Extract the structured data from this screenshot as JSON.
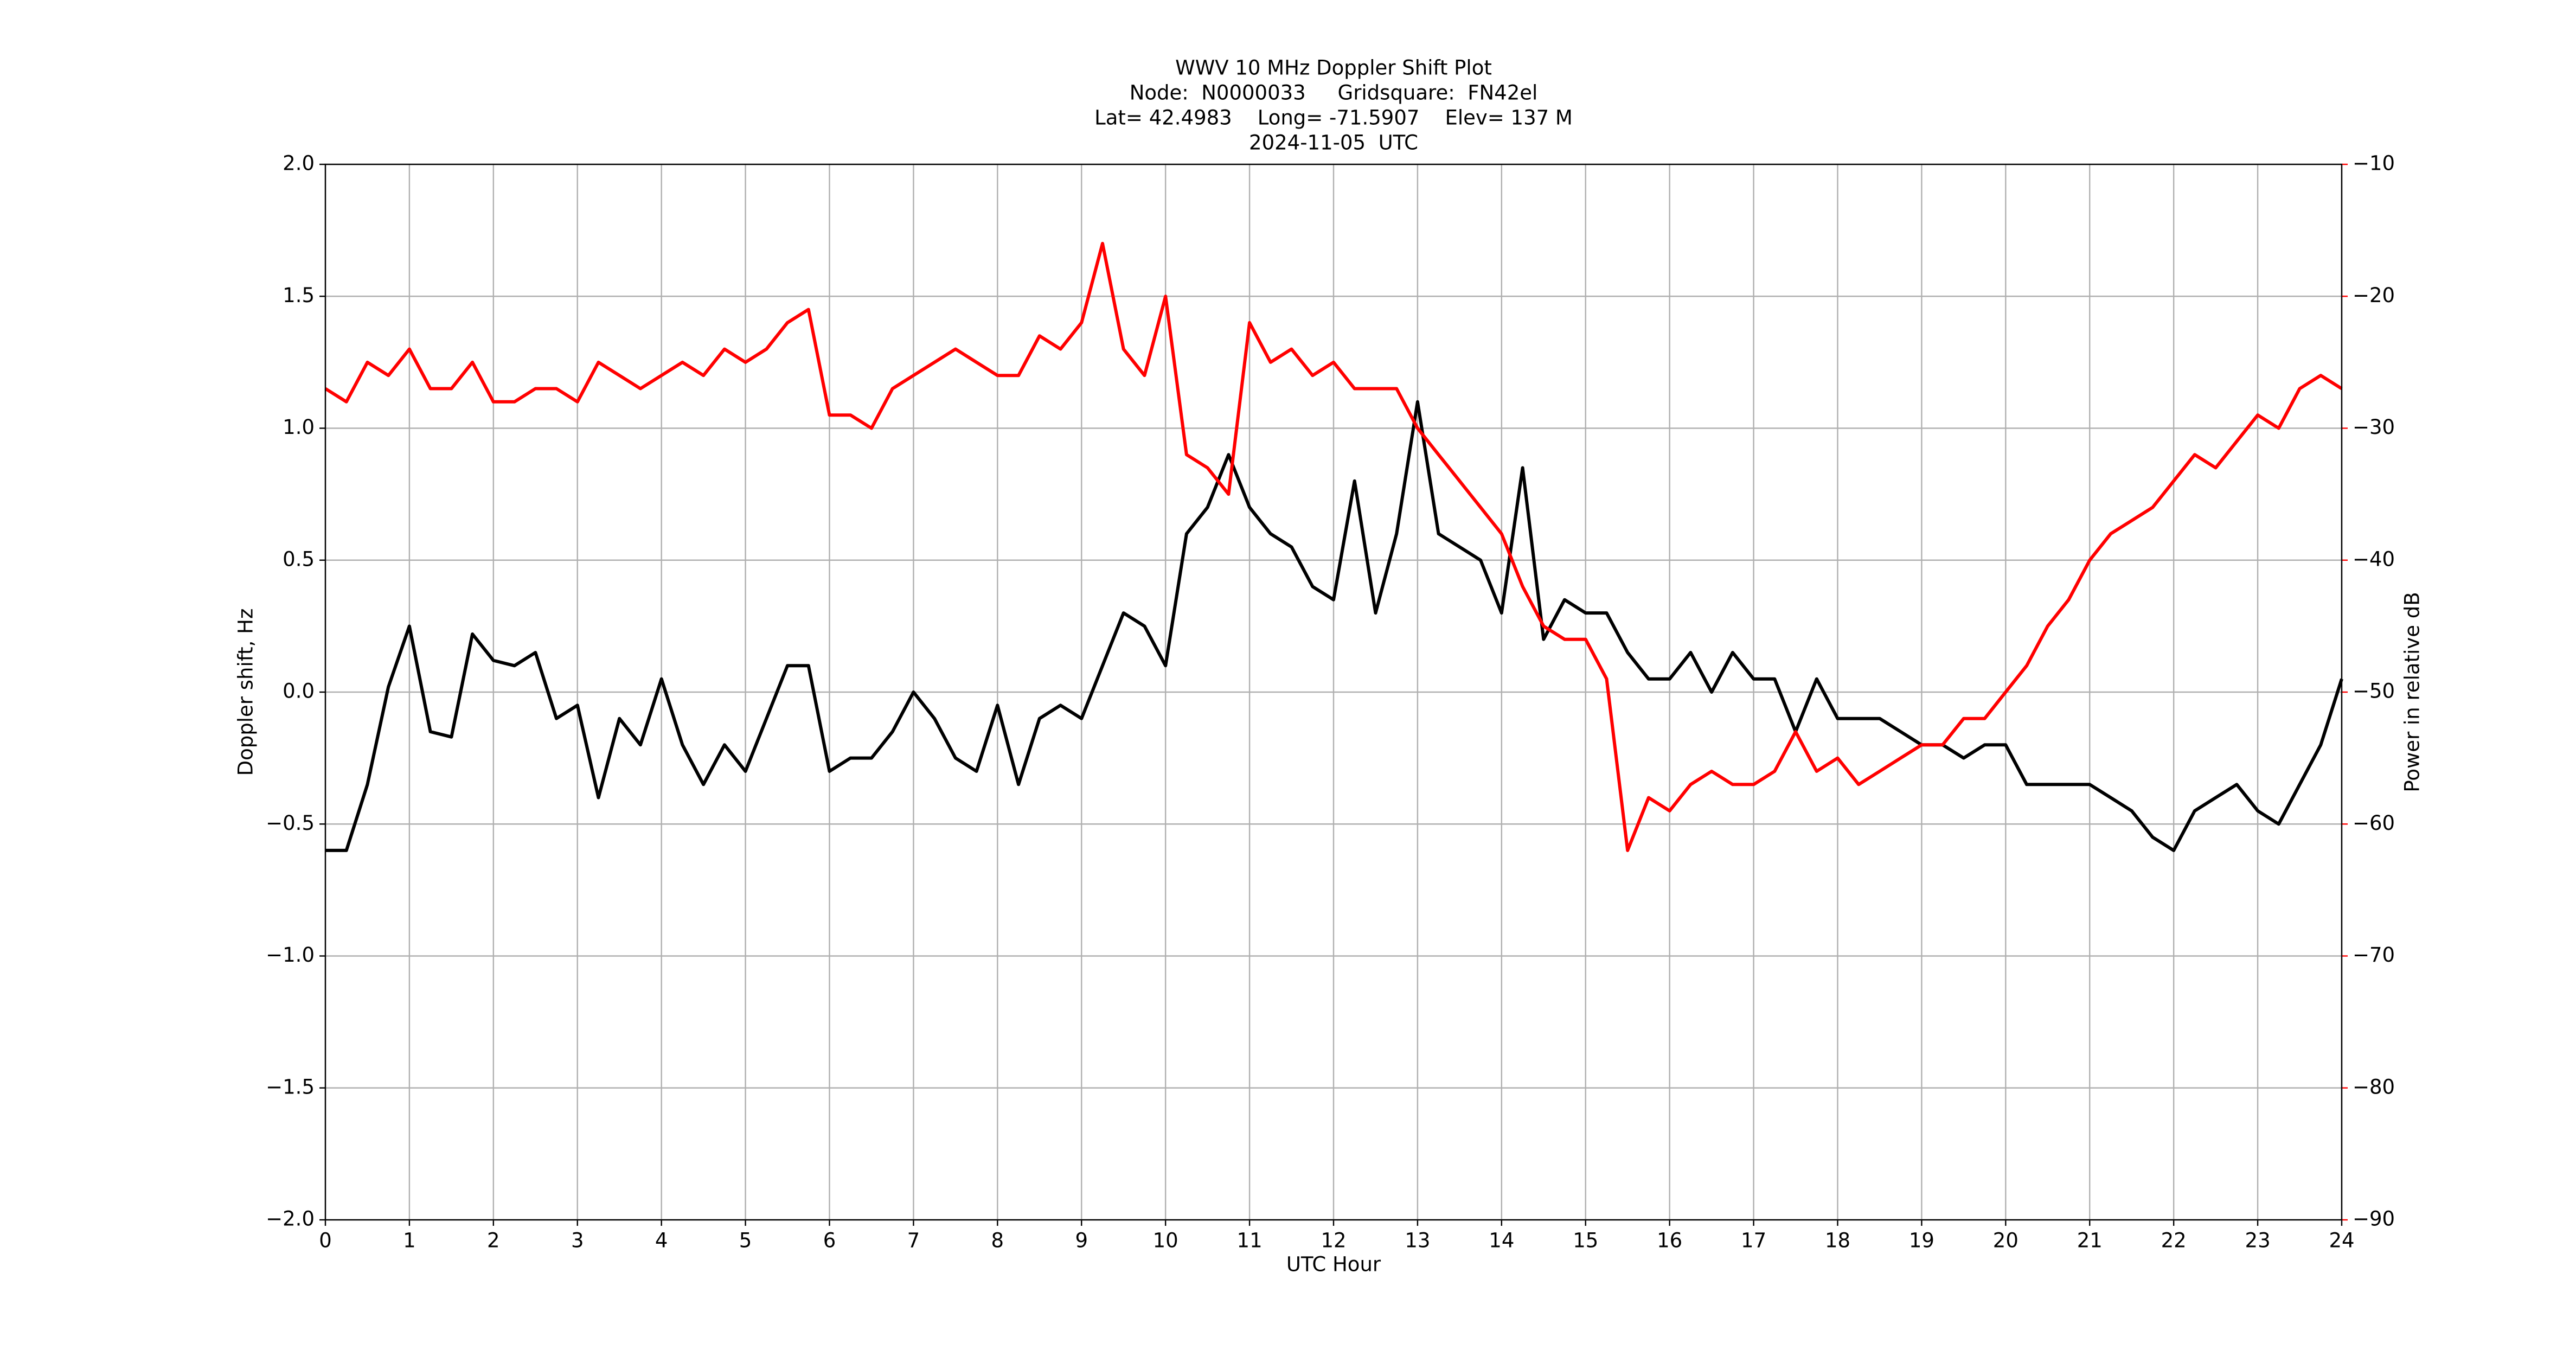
{
  "chart_data": {
    "type": "line",
    "title_lines": [
      "WWV 10 MHz Doppler Shift Plot",
      "Node:  N0000033     Gridsquare:  FN42el",
      "Lat= 42.4983    Long= -71.5907    Elev= 137 M",
      "2024-11-05  UTC"
    ],
    "x_label": "UTC Hour",
    "y_label": "Doppler shift, Hz",
    "y2_label": "Power in relative dB",
    "x": [
      0,
      0.25,
      0.5,
      0.75,
      1,
      1.25,
      1.5,
      1.75,
      2,
      2.25,
      2.5,
      2.75,
      3,
      3.25,
      3.5,
      3.75,
      4,
      4.25,
      4.5,
      4.75,
      5,
      5.25,
      5.5,
      5.75,
      6,
      6.25,
      6.5,
      6.75,
      7,
      7.25,
      7.5,
      7.75,
      8,
      8.25,
      8.5,
      8.75,
      9,
      9.25,
      9.5,
      9.75,
      10,
      10.25,
      10.5,
      10.75,
      11,
      11.25,
      11.5,
      11.75,
      12,
      12.25,
      12.5,
      12.75,
      13,
      13.25,
      13.5,
      13.75,
      14,
      14.25,
      14.5,
      14.75,
      15,
      15.25,
      15.5,
      15.75,
      16,
      16.25,
      16.5,
      16.75,
      17,
      17.25,
      17.5,
      17.75,
      18,
      18.25,
      18.5,
      18.75,
      19,
      19.25,
      19.5,
      19.75,
      20,
      20.25,
      20.5,
      20.75,
      21,
      21.25,
      21.5,
      21.75,
      22,
      22.25,
      22.5,
      22.75,
      23,
      23.25,
      23.5,
      23.75,
      24
    ],
    "series": [
      {
        "name": "Doppler shift",
        "color": "#000000",
        "axis": "y",
        "values": [
          -0.6,
          -0.6,
          -0.35,
          0.02,
          0.25,
          -0.15,
          -0.17,
          0.22,
          0.12,
          0.1,
          0.15,
          -0.1,
          -0.05,
          -0.4,
          -0.1,
          -0.2,
          0.05,
          -0.2,
          -0.35,
          -0.2,
          -0.3,
          -0.1,
          0.1,
          0.1,
          -0.3,
          -0.25,
          -0.25,
          -0.15,
          0.0,
          -0.1,
          -0.25,
          -0.3,
          -0.05,
          -0.35,
          -0.1,
          -0.05,
          -0.1,
          0.1,
          0.3,
          0.25,
          0.1,
          0.6,
          0.7,
          0.9,
          0.7,
          0.6,
          0.55,
          0.4,
          0.35,
          0.8,
          0.3,
          0.6,
          1.1,
          0.6,
          0.55,
          0.5,
          0.3,
          0.85,
          0.2,
          0.35,
          0.3,
          0.3,
          0.15,
          0.05,
          0.05,
          0.15,
          0.0,
          0.15,
          0.05,
          0.05,
          -0.15,
          0.05,
          -0.1,
          -0.1,
          -0.1,
          -0.15,
          -0.2,
          -0.2,
          -0.25,
          -0.2,
          -0.2,
          -0.35,
          -0.35,
          -0.35,
          -0.35,
          -0.4,
          -0.45,
          -0.55,
          -0.6,
          -0.45,
          -0.4,
          -0.35,
          -0.45,
          -0.5,
          -0.35,
          -0.2,
          0.05
        ]
      },
      {
        "name": "Power",
        "color": "#ff0000",
        "axis": "y2",
        "values": [
          -27,
          -28,
          -25,
          -26,
          -24,
          -27,
          -27,
          -25,
          -28,
          -28,
          -27,
          -27,
          -28,
          -25,
          -26,
          -27,
          -26,
          -25,
          -26,
          -24,
          -25,
          -24,
          -22,
          -21,
          -29,
          -29,
          -30,
          -27,
          -26,
          -25,
          -24,
          -25,
          -26,
          -26,
          -23,
          -24,
          -22,
          -16,
          -24,
          -26,
          -20,
          -32,
          -33,
          -35,
          -22,
          -25,
          -24,
          -26,
          -25,
          -27,
          -27,
          -27,
          -30,
          -32,
          -34,
          -36,
          -38,
          -42,
          -45,
          -46,
          -46,
          -49,
          -62,
          -58,
          -59,
          -57,
          -56,
          -57,
          -57,
          -56,
          -53,
          -56,
          -55,
          -57,
          -56,
          -55,
          -54,
          -54,
          -52,
          -52,
          -50,
          -48,
          -45,
          -43,
          -40,
          -38,
          -37,
          -36,
          -34,
          -32,
          -33,
          -31,
          -29,
          -30,
          -27,
          -26,
          -27
        ]
      }
    ],
    "xlim": [
      0,
      24
    ],
    "xticks": [
      0,
      1,
      2,
      3,
      4,
      5,
      6,
      7,
      8,
      9,
      10,
      11,
      12,
      13,
      14,
      15,
      16,
      17,
      18,
      19,
      20,
      21,
      22,
      23,
      24
    ],
    "ylim": [
      -2,
      2
    ],
    "yticks": [
      {
        "value": -2,
        "label": "−2.0"
      },
      {
        "value": -1.5,
        "label": "−1.5"
      },
      {
        "value": -1,
        "label": "−1.0"
      },
      {
        "value": -0.5,
        "label": "−0.5"
      },
      {
        "value": 0,
        "label": "0.0"
      },
      0.5,
      {
        "value": 1,
        "label": "1.0"
      },
      1.5,
      {
        "value": 2,
        "label": "2.0"
      }
    ],
    "y2lim": [
      -90,
      -10
    ],
    "y2ticks": [
      {
        "value": -90,
        "label": "−90"
      },
      {
        "value": -80,
        "label": "−80"
      },
      {
        "value": -70,
        "label": "−70"
      },
      {
        "value": -60,
        "label": "−60"
      },
      {
        "value": -50,
        "label": "−50"
      },
      {
        "value": -40,
        "label": "−40"
      },
      {
        "value": -30,
        "label": "−30"
      },
      {
        "value": -20,
        "label": "−20"
      },
      {
        "value": -10,
        "label": "−10"
      }
    ],
    "y2_color": "#ff0000",
    "grid": true
  }
}
